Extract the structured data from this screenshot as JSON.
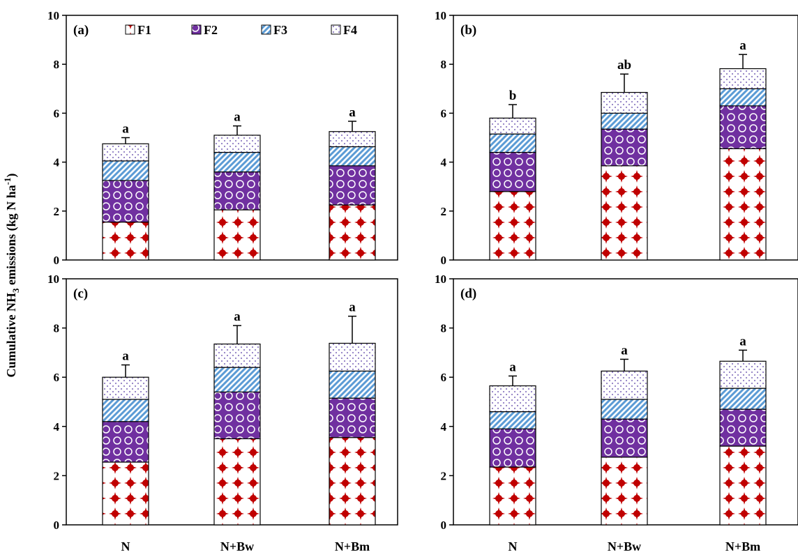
{
  "ylabel_parts": {
    "pre": "Cumulative NH",
    "sub": "3",
    "mid": " emissions (kg N ha",
    "sup": "-1",
    "post": ")"
  },
  "legend": [
    "F1",
    "F2",
    "F3",
    "F4"
  ],
  "colors": {
    "F1": "#c00000",
    "F2": "#7030a0",
    "F3": "#5b9bd5",
    "F4": "#8e7cc3"
  },
  "chart_data": [
    {
      "type": "bar",
      "stacked": true,
      "panel_label": "(a)",
      "categories": [
        "N",
        "N+Bw",
        "N+Bm"
      ],
      "ylim": [
        0,
        10
      ],
      "yticks": [
        "0",
        "2",
        "4",
        "6",
        "8",
        "10"
      ],
      "series": [
        {
          "name": "F1",
          "values": [
            1.55,
            2.05,
            2.25
          ]
        },
        {
          "name": "F2",
          "values": [
            1.7,
            1.55,
            1.6
          ]
        },
        {
          "name": "F3",
          "values": [
            0.8,
            0.8,
            0.78
          ]
        },
        {
          "name": "F4",
          "values": [
            0.7,
            0.7,
            0.62
          ]
        }
      ],
      "error": [
        0.25,
        0.38,
        0.42
      ],
      "significance": [
        "a",
        "a",
        "a"
      ]
    },
    {
      "type": "bar",
      "stacked": true,
      "panel_label": "(b)",
      "categories": [
        "N",
        "N+Bw",
        "N+Bm"
      ],
      "ylim": [
        0,
        10
      ],
      "yticks": [
        "0",
        "2",
        "4",
        "6",
        "8",
        "10"
      ],
      "series": [
        {
          "name": "F1",
          "values": [
            2.8,
            3.85,
            4.55
          ]
        },
        {
          "name": "F2",
          "values": [
            1.6,
            1.5,
            1.75
          ]
        },
        {
          "name": "F3",
          "values": [
            0.75,
            0.65,
            0.7
          ]
        },
        {
          "name": "F4",
          "values": [
            0.65,
            0.85,
            0.82
          ]
        }
      ],
      "error": [
        0.55,
        0.75,
        0.58
      ],
      "significance": [
        "b",
        "ab",
        "a"
      ]
    },
    {
      "type": "bar",
      "stacked": true,
      "panel_label": "(c)",
      "categories": [
        "N",
        "N+Bw",
        "N+Bm"
      ],
      "ylim": [
        0,
        10
      ],
      "yticks": [
        "0",
        "2",
        "4",
        "6",
        "8",
        "10"
      ],
      "series": [
        {
          "name": "F1",
          "values": [
            2.55,
            3.5,
            3.55
          ]
        },
        {
          "name": "F2",
          "values": [
            1.65,
            1.9,
            1.6
          ]
        },
        {
          "name": "F3",
          "values": [
            0.9,
            1.0,
            1.1
          ]
        },
        {
          "name": "F4",
          "values": [
            0.9,
            0.95,
            1.13
          ]
        }
      ],
      "error": [
        0.5,
        0.75,
        1.1
      ],
      "significance": [
        "a",
        "a",
        "a"
      ]
    },
    {
      "type": "bar",
      "stacked": true,
      "panel_label": "(d)",
      "categories": [
        "N",
        "N+Bw",
        "N+Bm"
      ],
      "ylim": [
        0,
        10
      ],
      "yticks": [
        "0",
        "2",
        "4",
        "6",
        "8",
        "10"
      ],
      "series": [
        {
          "name": "F1",
          "values": [
            2.35,
            2.75,
            3.2
          ]
        },
        {
          "name": "F2",
          "values": [
            1.55,
            1.55,
            1.5
          ]
        },
        {
          "name": "F3",
          "values": [
            0.7,
            0.8,
            0.85
          ]
        },
        {
          "name": "F4",
          "values": [
            1.05,
            1.15,
            1.1
          ]
        }
      ],
      "error": [
        0.4,
        0.48,
        0.45
      ],
      "significance": [
        "a",
        "a",
        "a"
      ]
    }
  ]
}
